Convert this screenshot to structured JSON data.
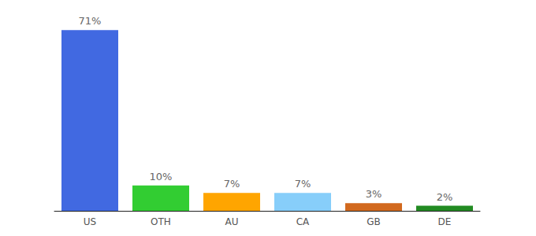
{
  "chart_data": {
    "type": "bar",
    "categories": [
      "US",
      "OTH",
      "AU",
      "CA",
      "GB",
      "DE"
    ],
    "values": [
      71,
      10,
      7,
      7,
      3,
      2
    ],
    "value_labels": [
      "71%",
      "10%",
      "7%",
      "7%",
      "3%",
      "2%"
    ],
    "colors": [
      "#4169e1",
      "#32cd32",
      "#ffa500",
      "#87cefa",
      "#d2691e",
      "#228b22"
    ],
    "ylim": [
      0,
      80
    ],
    "yticks": [
      0,
      80
    ],
    "grid": false,
    "data_labels": true,
    "tick_labels": "x"
  }
}
